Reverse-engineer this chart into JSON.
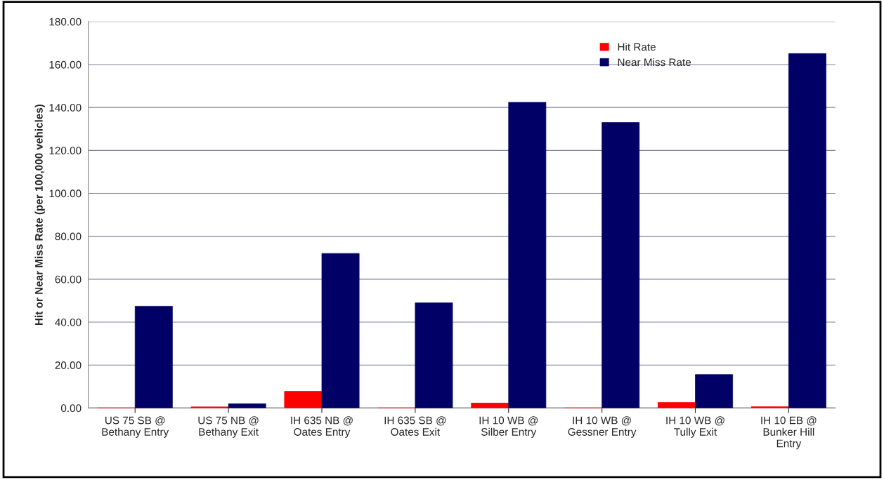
{
  "chart_data": {
    "type": "bar",
    "ylabel": "Hit or Near Miss Rate (per 100,000 vehicles)",
    "categories": [
      "US 75 SB @\nBethany Entry",
      "US 75 NB @\nBethany Exit",
      "IH 635 NB @\nOates Entry",
      "IH 635 SB @\nOates Exit",
      "IH 10 WB @\nSilber Entry",
      "IH 10 WB @\nGessner Entry",
      "IH 10 WB @\nTully Exit",
      "IH 10 EB @\nBunker Hill\nEntry"
    ],
    "series": [
      {
        "name": "Hit Rate",
        "color": "#ff0000",
        "values": [
          0,
          0.5,
          7.8,
          0,
          2.3,
          0,
          2.6,
          0.6
        ]
      },
      {
        "name": "Near Miss Rate",
        "color": "#000066",
        "values": [
          47.4,
          2.0,
          72.0,
          49.0,
          142.4,
          133.0,
          15.6,
          165.1
        ]
      }
    ],
    "ylim": [
      0,
      180
    ],
    "yticks": [
      {
        "value": 0,
        "label": "0.00"
      },
      {
        "value": 20,
        "label": "20.00"
      },
      {
        "value": 40,
        "label": "40.00"
      },
      {
        "value": 60,
        "label": "60.00"
      },
      {
        "value": 80,
        "label": "80.00"
      },
      {
        "value": 100,
        "label": "100.00"
      },
      {
        "value": 120,
        "label": "120.00"
      },
      {
        "value": 140,
        "label": "140.00"
      },
      {
        "value": 160,
        "label": "160.00"
      },
      {
        "value": 180,
        "label": "180.00"
      }
    ],
    "grid": "y",
    "legend": "top right"
  }
}
